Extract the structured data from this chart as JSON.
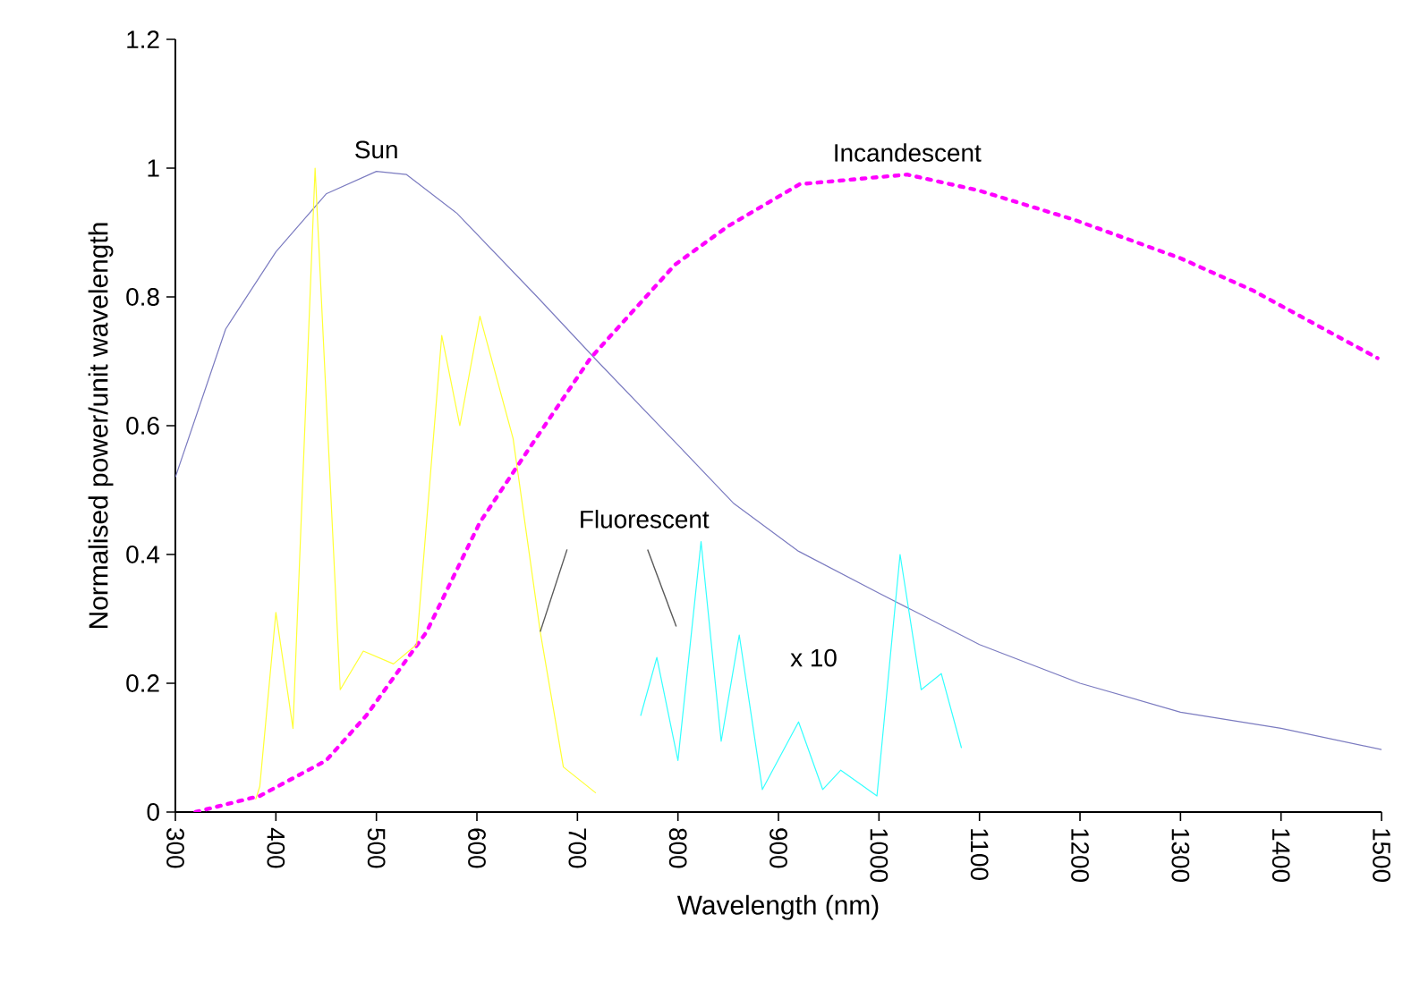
{
  "chart_data": {
    "type": "line",
    "xlabel": "Wavelength (nm)",
    "ylabel": "Normalised power/unit wavelength",
    "xlim": [
      300,
      1500
    ],
    "ylim": [
      0,
      1.2
    ],
    "xticks": [
      300,
      400,
      500,
      600,
      700,
      800,
      900,
      1000,
      1100,
      1200,
      1300,
      1400,
      1500
    ],
    "yticks": [
      0,
      0.2,
      0.4,
      0.6,
      0.8,
      1,
      1.2
    ],
    "grid": false,
    "legend": false,
    "marker": "none",
    "series": [
      {
        "name": "Sun",
        "color": "#7b7bc0",
        "line_style": "solid",
        "x": [
          300,
          350,
          400,
          450,
          500,
          530,
          580,
          660,
          720,
          800,
          855,
          920,
          1000,
          1100,
          1200,
          1300,
          1400,
          1500
        ],
        "values": [
          0.52,
          0.75,
          0.87,
          0.96,
          0.995,
          0.99,
          0.93,
          0.8,
          0.7,
          0.57,
          0.48,
          0.405,
          0.34,
          0.26,
          0.2,
          0.155,
          0.13,
          0.097
        ]
      },
      {
        "name": "Incandescent",
        "color": "#ff00ff",
        "line_style": "dotted",
        "x": [
          320,
          384,
          450,
          490,
          550,
          603,
          650,
          713,
          797,
          850,
          921,
          1028,
          1100,
          1194,
          1300,
          1372,
          1496
        ],
        "values": [
          0,
          0.025,
          0.08,
          0.15,
          0.28,
          0.45,
          0.56,
          0.705,
          0.85,
          0.91,
          0.975,
          0.99,
          0.965,
          0.92,
          0.86,
          0.81,
          0.705
        ]
      },
      {
        "color": "#ffff33",
        "line_style": "solid",
        "x": [
          380,
          384,
          400,
          417,
          439,
          464,
          487,
          517,
          540,
          565,
          583,
          603,
          636,
          663,
          686,
          718
        ],
        "values": [
          0.02,
          0.04,
          0.31,
          0.13,
          1.0,
          0.19,
          0.25,
          0.23,
          0.26,
          0.74,
          0.6,
          0.77,
          0.58,
          0.28,
          0.07,
          0.03
        ]
      },
      {
        "color": "#33ffff",
        "line_style": "solid",
        "x": [
          763,
          779,
          800,
          823,
          843,
          861,
          884,
          920,
          944,
          962,
          998,
          1021,
          1042,
          1062,
          1082
        ],
        "values": [
          0.15,
          0.24,
          0.08,
          0.42,
          0.11,
          0.275,
          0.035,
          0.14,
          0.035,
          0.065,
          0.025,
          0.4,
          0.19,
          0.215,
          0.1
        ]
      }
    ],
    "annotations": [
      {
        "text": "Fluorescent",
        "x": 663,
        "y": 0.28
      },
      "x 10"
    ]
  }
}
